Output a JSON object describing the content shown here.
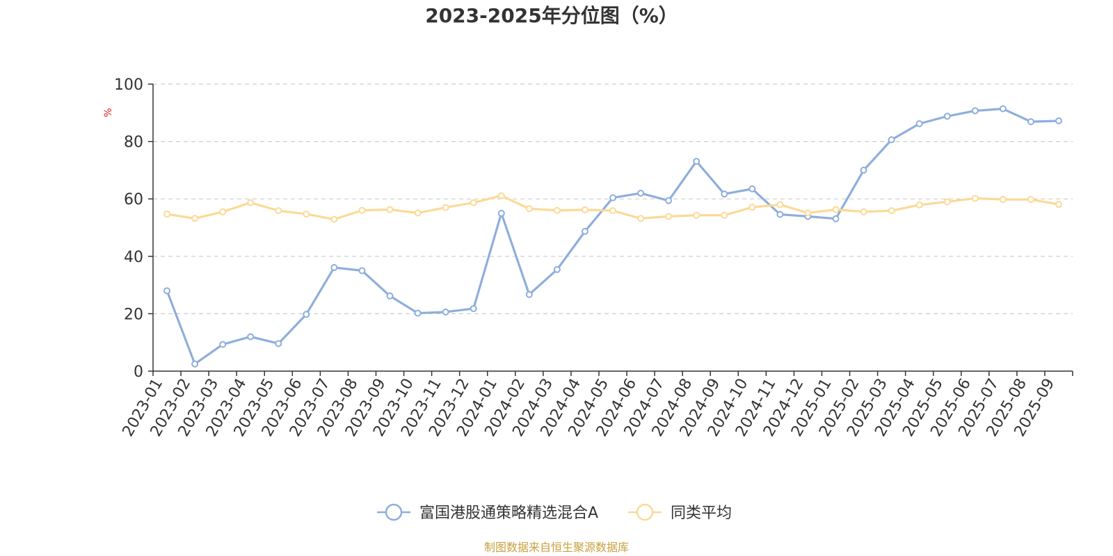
{
  "chart_data": {
    "type": "line",
    "title": "2023-2025年分位图（%）",
    "ylabel": "%",
    "xlabel": "",
    "ylim": [
      0,
      100
    ],
    "yticks": [
      0,
      20,
      40,
      60,
      80,
      100
    ],
    "grid": true,
    "legend_position": "bottom",
    "categories": [
      "2023-01",
      "2023-02",
      "2023-03",
      "2023-04",
      "2023-05",
      "2023-06",
      "2023-07",
      "2023-08",
      "2023-09",
      "2023-10",
      "2023-11",
      "2023-12",
      "2024-01",
      "2024-02",
      "2024-03",
      "2024-04",
      "2024-05",
      "2024-06",
      "2024-07",
      "2024-08",
      "2024-09",
      "2024-10",
      "2024-11",
      "2024-12",
      "2025-01",
      "2025-02",
      "2025-03",
      "2025-04",
      "2025-05",
      "2025-06",
      "2025-07",
      "2025-08",
      "2025-09"
    ],
    "series": [
      {
        "name": "富国港股通策略精选混合A",
        "color": "#8eaedc",
        "values": [
          28.0,
          2.5,
          9.3,
          12.0,
          9.6,
          19.8,
          36.1,
          35.0,
          26.2,
          20.2,
          20.6,
          21.8,
          55.0,
          26.7,
          35.4,
          48.7,
          60.4,
          62.0,
          59.4,
          73.1,
          61.7,
          63.5,
          54.6,
          53.9,
          53.1,
          70.0,
          80.6,
          86.2,
          88.8,
          90.7,
          91.4,
          86.9,
          87.2
        ]
      },
      {
        "name": "同类平均",
        "color": "#fcd996",
        "values": [
          54.7,
          53.2,
          55.5,
          58.7,
          55.9,
          54.7,
          52.9,
          56.0,
          56.3,
          55.1,
          57.0,
          58.7,
          61.1,
          56.6,
          56.0,
          56.2,
          55.9,
          53.2,
          53.9,
          54.3,
          54.3,
          57.1,
          58.0,
          55.1,
          56.3,
          55.5,
          55.9,
          57.9,
          59.0,
          60.2,
          59.8,
          59.8,
          58.1
        ]
      }
    ],
    "source": "制图数据来自恒生聚源数据库"
  }
}
